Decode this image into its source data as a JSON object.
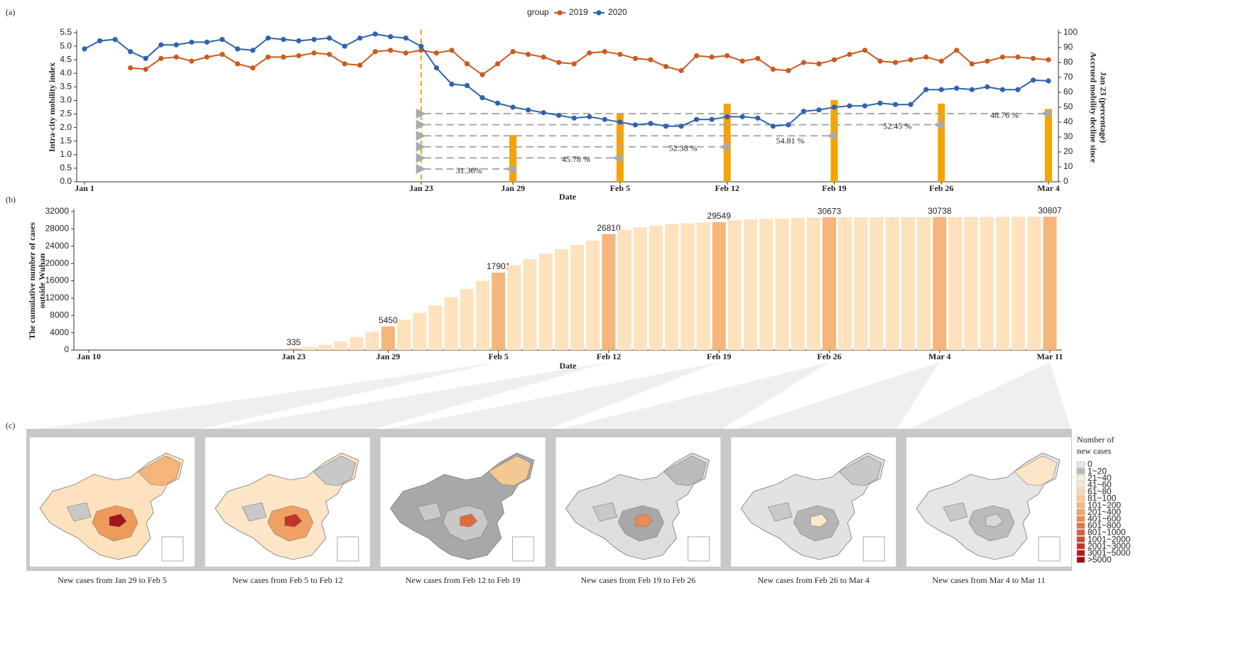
{
  "chart_data": [
    {
      "type": "line",
      "label": "(a)",
      "legend_title": "group",
      "ylabel": "Intra-city mobility index",
      "y2label": [
        "Accrued mobility decline since",
        "Jan 23 (percentage)"
      ],
      "xlabel": "Date",
      "categories": [
        "Jan 1",
        null,
        null,
        null,
        null,
        null,
        null,
        null,
        null,
        null,
        null,
        null,
        null,
        null,
        null,
        null,
        null,
        null,
        null,
        null,
        null,
        null,
        "Jan 23",
        null,
        null,
        null,
        null,
        null,
        "Jan 29",
        null,
        null,
        null,
        null,
        null,
        null,
        "Feb 5",
        null,
        null,
        null,
        null,
        null,
        null,
        "Feb 12",
        null,
        null,
        null,
        null,
        null,
        null,
        "Feb 19",
        null,
        null,
        null,
        null,
        null,
        null,
        "Feb 26",
        null,
        null,
        null,
        null,
        null,
        null,
        "Mar 4"
      ],
      "series": [
        {
          "name": "2019",
          "color": "#cc5a1e",
          "values": [
            null,
            null,
            null,
            4.2,
            4.15,
            4.55,
            4.6,
            4.45,
            4.6,
            4.7,
            4.35,
            4.2,
            4.6,
            4.6,
            4.65,
            4.75,
            4.7,
            4.35,
            4.3,
            4.8,
            4.85,
            4.75,
            4.85,
            4.75,
            4.85,
            4.35,
            3.95,
            4.35,
            4.8,
            4.7,
            4.6,
            4.4,
            4.35,
            4.75,
            4.8,
            4.7,
            4.55,
            4.5,
            4.25,
            4.1,
            4.65,
            4.6,
            4.65,
            4.45,
            4.55,
            4.15,
            4.1,
            4.4,
            4.35,
            4.5,
            4.7,
            4.85,
            4.45,
            4.4,
            4.5,
            4.6,
            4.45,
            4.85,
            4.35,
            4.45,
            4.6,
            4.6,
            4.55,
            4.5
          ]
        },
        {
          "name": "2020",
          "color": "#2f63b0",
          "values": [
            4.9,
            5.2,
            5.25,
            4.8,
            4.55,
            5.05,
            5.05,
            5.15,
            5.15,
            5.25,
            4.9,
            4.85,
            5.3,
            5.25,
            5.2,
            5.25,
            5.3,
            5.0,
            5.3,
            5.45,
            5.35,
            5.3,
            5.0,
            4.2,
            3.6,
            3.55,
            3.1,
            2.9,
            2.75,
            2.65,
            2.55,
            2.45,
            2.35,
            2.4,
            2.3,
            2.2,
            2.1,
            2.15,
            2.05,
            2.05,
            2.3,
            2.3,
            2.4,
            2.4,
            2.35,
            2.05,
            2.1,
            2.6,
            2.65,
            2.75,
            2.8,
            2.8,
            2.9,
            2.85,
            2.85,
            3.4,
            3.4,
            3.45,
            3.4,
            3.5,
            3.4,
            3.4,
            3.75,
            3.72
          ]
        }
      ],
      "bars": {
        "axis": "y2",
        "color": "#f5a300",
        "values": [
          null,
          null,
          null,
          null,
          null,
          null,
          null,
          null,
          null,
          null,
          null,
          null,
          null,
          null,
          null,
          null,
          null,
          null,
          null,
          null,
          null,
          null,
          null,
          null,
          null,
          null,
          null,
          null,
          31.36,
          null,
          null,
          null,
          null,
          null,
          null,
          45.78,
          null,
          null,
          null,
          null,
          null,
          null,
          52.38,
          null,
          null,
          null,
          null,
          null,
          null,
          54.81,
          null,
          null,
          null,
          null,
          null,
          null,
          52.45,
          null,
          null,
          null,
          null,
          null,
          null,
          48.76
        ],
        "value_labels": [
          null,
          null,
          null,
          null,
          null,
          null,
          null,
          null,
          null,
          null,
          null,
          null,
          null,
          null,
          null,
          null,
          null,
          null,
          null,
          null,
          null,
          null,
          null,
          null,
          null,
          null,
          null,
          null,
          "31.36%",
          null,
          null,
          null,
          null,
          null,
          null,
          "45.78 %",
          null,
          null,
          null,
          null,
          null,
          null,
          "52.38 %",
          null,
          null,
          null,
          null,
          null,
          null,
          "54.81 %",
          null,
          null,
          null,
          null,
          null,
          null,
          "52.45 %",
          null,
          null,
          null,
          null,
          null,
          null,
          "48.76 %"
        ]
      },
      "ylim": [
        0,
        5.5
      ],
      "yticks": [
        {
          "value": 0,
          "label": "0.0"
        },
        0.5,
        {
          "value": 1,
          "label": "1.0"
        },
        1.5,
        {
          "value": 2,
          "label": "2.0"
        },
        2.5,
        {
          "value": 3,
          "label": "3.0"
        },
        3.5,
        {
          "value": 4,
          "label": "4.0"
        },
        4.5,
        {
          "value": 5,
          "label": "5.0"
        },
        5.5
      ],
      "y2lim": [
        0,
        100
      ],
      "y2ticks": [
        0,
        10,
        20,
        30,
        40,
        50,
        60,
        70,
        80,
        90,
        100
      ]
    },
    {
      "type": "bar",
      "label": "(b)",
      "ylabel": [
        "The cumulative number of cases",
        "outside Wuhan"
      ],
      "xlabel": "Date",
      "color": "#fde2bd",
      "highlight_color": "#f6b57a",
      "categories": [
        "Jan 10",
        null,
        null,
        null,
        null,
        null,
        null,
        null,
        null,
        null,
        null,
        null,
        null,
        "Jan 23",
        null,
        null,
        null,
        null,
        null,
        "Jan 29",
        null,
        null,
        null,
        null,
        null,
        null,
        "Feb 5",
        null,
        null,
        null,
        null,
        null,
        null,
        "Feb 12",
        null,
        null,
        null,
        null,
        null,
        null,
        "Feb 19",
        null,
        null,
        null,
        null,
        null,
        null,
        "Feb 26",
        null,
        null,
        null,
        null,
        null,
        null,
        "Mar 4",
        null,
        null,
        null,
        null,
        null,
        null,
        "Mar 11"
      ],
      "values": [
        0,
        0,
        0,
        0,
        0,
        0,
        0,
        0,
        0,
        0,
        0,
        0,
        0,
        335,
        700,
        1200,
        2000,
        3000,
        4200,
        5450,
        7000,
        8600,
        10300,
        12200,
        14100,
        16000,
        17901,
        19600,
        21000,
        22300,
        23300,
        24300,
        25300,
        26810,
        27800,
        28400,
        28800,
        29100,
        29300,
        29450,
        29549,
        30000,
        30200,
        30300,
        30400,
        30500,
        30600,
        30673,
        30690,
        30700,
        30710,
        30715,
        30720,
        30730,
        30738,
        30750,
        30760,
        30770,
        30780,
        30790,
        30800,
        30807
      ],
      "ylim": [
        0,
        32000
      ],
      "yticks": [
        0,
        4000,
        8000,
        12000,
        16000,
        20000,
        24000,
        28000,
        32000
      ]
    }
  ],
  "maps": {
    "label": "(c)",
    "captions": [
      "New cases from Jan 29 to Feb 5",
      "New cases from Feb 5 to Feb 12",
      "New cases from Feb 12 to Feb 19",
      "New cases from Feb 19 to Feb 26",
      "New cases from Feb 26 to Mar 4",
      "New cases from Mar 4 to Mar 11"
    ],
    "legend": {
      "title": [
        "Number of",
        "new cases"
      ],
      "items": [
        {
          "label": "0",
          "color": "#e6e6e6"
        },
        {
          "label": "1~20",
          "color": "#b9b9b9"
        },
        {
          "label": "21~40",
          "color": "#fdf0dc"
        },
        {
          "label": "41~60",
          "color": "#fde6c7"
        },
        {
          "label": "61~80",
          "color": "#fcdab0"
        },
        {
          "label": "81~100",
          "color": "#facb95"
        },
        {
          "label": "101~200",
          "color": "#f7b97a"
        },
        {
          "label": "201~400",
          "color": "#f3a363"
        },
        {
          "label": "401~600",
          "color": "#ee8c50"
        },
        {
          "label": "601~800",
          "color": "#e67543"
        },
        {
          "label": "801~1000",
          "color": "#dd5f38"
        },
        {
          "label": "1001~2000",
          "color": "#d24a2e"
        },
        {
          "label": "2001~3000",
          "color": "#c43426"
        },
        {
          "label": "3001~5000",
          "color": "#b11e1e"
        },
        {
          "label": ">5000",
          "color": "#9b0d14"
        }
      ]
    }
  }
}
